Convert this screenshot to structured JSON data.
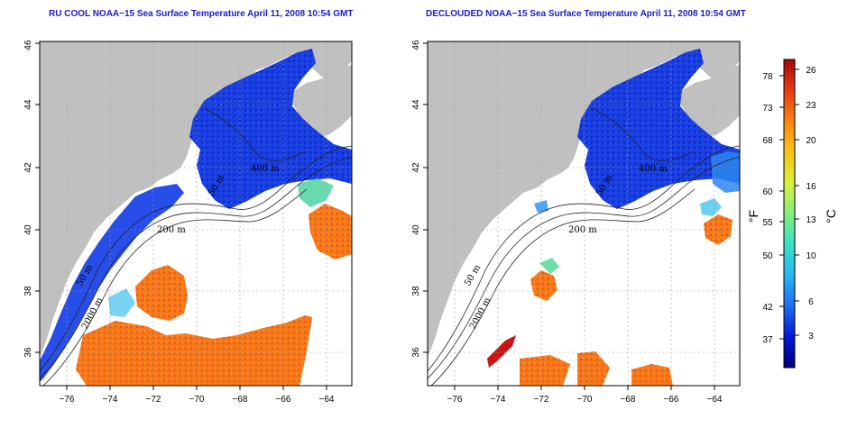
{
  "titles": {
    "left": "RU COOL NOAA−15 Sea Surface Temperature April 11, 2008 10:54 GMT",
    "right": "DECLOUDED NOAA−15 Sea Surface Temperature April 11, 2008 10:54 GMT"
  },
  "axes": {
    "x_ticks": [
      "−76",
      "−74",
      "−72",
      "−70",
      "−68",
      "−66",
      "−64"
    ],
    "y_ticks": [
      "36",
      "38",
      "40",
      "42",
      "44",
      "46"
    ]
  },
  "contour_labels": {
    "left": [
      "200 m",
      "400 m",
      "50 m",
      "50 m",
      "2000 m"
    ],
    "right": [
      "200 m",
      "400 m",
      "50 m",
      "50 m",
      "2000 m"
    ]
  },
  "colorbar": {
    "fahrenheit_ticks": [
      "78",
      "73",
      "68",
      "60",
      "55",
      "50",
      "42",
      "37"
    ],
    "celsius_ticks": [
      "26",
      "23",
      "20",
      "16",
      "13",
      "10",
      "6",
      "3"
    ],
    "fahrenheit_unit": "°F",
    "celsius_unit": "°C",
    "colors": [
      "#00007a",
      "#0018d8",
      "#1f6cf0",
      "#27b6f2",
      "#38e0c8",
      "#84f07e",
      "#d9ef3b",
      "#f9c21a",
      "#f98415",
      "#e83a12",
      "#a40808"
    ]
  },
  "colors": {
    "land": "#c0c0c0",
    "ocean": "#ffffff",
    "title": "#1c1cc4"
  }
}
